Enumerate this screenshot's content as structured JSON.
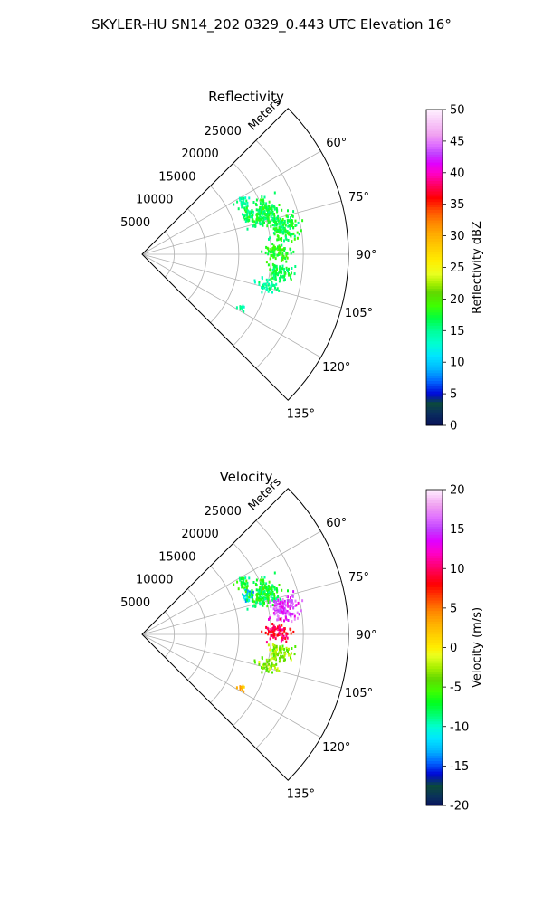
{
  "title": "SKYLER-HU  SN14_202  0329_0.443 UTC Elevation 16°",
  "chart_data": [
    {
      "type": "polar-sector-heatmap",
      "title": "Reflectivity",
      "radial_axis_label": "Meters",
      "theta_range_deg": [
        45,
        135
      ],
      "theta_ticks": [
        60,
        75,
        90,
        105,
        120,
        135
      ],
      "theta_tick_labels": [
        "60°",
        "75°",
        "90°",
        "105°",
        "120°",
        "135°"
      ],
      "r_max": 32000,
      "r_ticks": [
        5000,
        10000,
        15000,
        20000,
        25000
      ],
      "r_tick_labels": [
        "5000",
        "10000",
        "15000",
        "20000",
        "25000"
      ],
      "colorbar": {
        "label": "Reflectivity dBZ",
        "min": 0,
        "max": 50,
        "ticks": [
          0,
          5,
          10,
          15,
          20,
          25,
          30,
          35,
          40,
          45,
          50
        ],
        "tick_labels": [
          "0",
          "5",
          "10",
          "15",
          "20",
          "25",
          "30",
          "35",
          "40",
          "45",
          "50"
        ]
      },
      "echo_regions": [
        {
          "theta_deg": 63,
          "r_m": 17500,
          "dtheta": 6,
          "dr": 1500,
          "density": 0.35,
          "value": 15
        },
        {
          "theta_deg": 70,
          "r_m": 17500,
          "dtheta": 5,
          "dr": 1500,
          "density": 0.4,
          "value": 16
        },
        {
          "theta_deg": 72,
          "r_m": 20000,
          "dtheta": 9,
          "dr": 4000,
          "density": 0.6,
          "value": 17
        },
        {
          "theta_deg": 80,
          "r_m": 22500,
          "dtheta": 8,
          "dr": 3500,
          "density": 0.55,
          "value": 17
        },
        {
          "theta_deg": 89,
          "r_m": 21000,
          "dtheta": 6,
          "dr": 3000,
          "density": 0.5,
          "value": 18
        },
        {
          "theta_deg": 97,
          "r_m": 21500,
          "dtheta": 6,
          "dr": 3000,
          "density": 0.5,
          "value": 17
        },
        {
          "theta_deg": 104,
          "r_m": 20000,
          "dtheta": 5,
          "dr": 2500,
          "density": 0.4,
          "value": 15
        },
        {
          "theta_deg": 118,
          "r_m": 17500,
          "dtheta": 3,
          "dr": 900,
          "density": 0.5,
          "value": 14
        }
      ]
    },
    {
      "type": "polar-sector-heatmap",
      "title": "Velocity",
      "radial_axis_label": "Meters",
      "theta_range_deg": [
        45,
        135
      ],
      "theta_ticks": [
        60,
        75,
        90,
        105,
        120,
        135
      ],
      "theta_tick_labels": [
        "60°",
        "75°",
        "90°",
        "105°",
        "120°",
        "135°"
      ],
      "r_max": 32000,
      "r_ticks": [
        5000,
        10000,
        15000,
        20000,
        25000
      ],
      "r_tick_labels": [
        "5000",
        "10000",
        "15000",
        "20000",
        "25000"
      ],
      "colorbar": {
        "label": "Velocity (m/s)",
        "min": -20,
        "max": 20,
        "ticks": [
          -20,
          -15,
          -10,
          -5,
          0,
          5,
          10,
          15,
          20
        ],
        "tick_labels": [
          "-20",
          "-15",
          "-10",
          "-5",
          "0",
          "5",
          "10",
          "15",
          "20"
        ]
      },
      "echo_regions": [
        {
          "theta_deg": 63,
          "r_m": 17500,
          "dtheta": 6,
          "dr": 1500,
          "density": 0.35,
          "value": -7
        },
        {
          "theta_deg": 70,
          "r_m": 17500,
          "dtheta": 5,
          "dr": 1500,
          "density": 0.4,
          "value": -12
        },
        {
          "theta_deg": 72,
          "r_m": 20000,
          "dtheta": 9,
          "dr": 4000,
          "density": 0.6,
          "value": -7
        },
        {
          "theta_deg": 80,
          "r_m": 22500,
          "dtheta": 8,
          "dr": 3500,
          "density": 0.55,
          "value": 15
        },
        {
          "theta_deg": 89,
          "r_m": 21000,
          "dtheta": 6,
          "dr": 3000,
          "density": 0.5,
          "value": 9
        },
        {
          "theta_deg": 97,
          "r_m": 21500,
          "dtheta": 6,
          "dr": 3000,
          "density": 0.5,
          "value": -3
        },
        {
          "theta_deg": 104,
          "r_m": 20000,
          "dtheta": 5,
          "dr": 2500,
          "density": 0.4,
          "value": -3
        },
        {
          "theta_deg": 118,
          "r_m": 17500,
          "dtheta": 3,
          "dr": 900,
          "density": 0.5,
          "value": 2
        }
      ]
    }
  ]
}
